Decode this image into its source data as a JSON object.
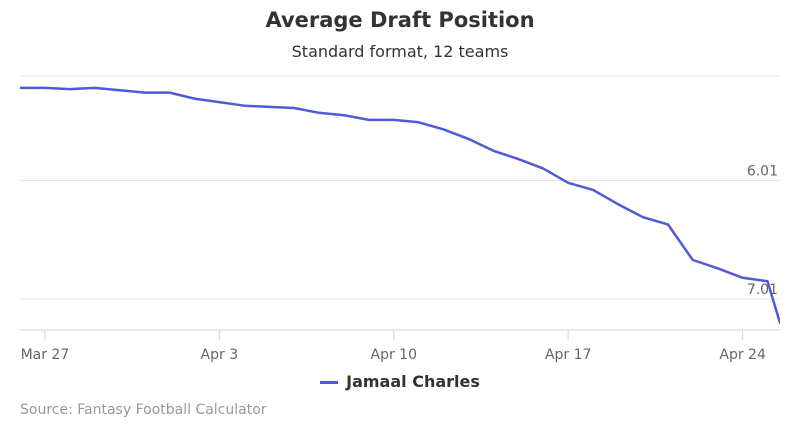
{
  "chart_data": {
    "type": "line",
    "title": "Average Draft Position",
    "subtitle": "Standard format, 12 teams",
    "xlabel": "",
    "ylabel": "",
    "x_tick_labels": [
      "Mar 27",
      "Apr 3",
      "Apr 10",
      "Apr 17",
      "Apr 24"
    ],
    "y_tick_labels": [
      "6.01",
      "7.01"
    ],
    "y_axis_reversed": true,
    "ylim": [
      5.13,
      7.27
    ],
    "xlim": [
      "2016-03-26",
      "2016-04-25"
    ],
    "grid": true,
    "legend_position": "bottom-center",
    "series": [
      {
        "name": "Jamaal Charles",
        "color": "#4f5bd5",
        "x": [
          "2016-03-26",
          "2016-03-27",
          "2016-03-28",
          "2016-03-29",
          "2016-03-30",
          "2016-03-31",
          "2016-04-01",
          "2016-04-02",
          "2016-04-03",
          "2016-04-04",
          "2016-04-05",
          "2016-04-06",
          "2016-04-07",
          "2016-04-08",
          "2016-04-09",
          "2016-04-10",
          "2016-04-11",
          "2016-04-12",
          "2016-04-13",
          "2016-04-14",
          "2016-04-15",
          "2016-04-16",
          "2016-04-17",
          "2016-04-18",
          "2016-04-19",
          "2016-04-20",
          "2016-04-21",
          "2016-04-22",
          "2016-04-23",
          "2016-04-24",
          "2016-04-25",
          "2016-04-25T12:00"
        ],
        "values": [
          5.23,
          5.23,
          5.24,
          5.23,
          5.25,
          5.27,
          5.27,
          5.32,
          5.35,
          5.38,
          5.39,
          5.4,
          5.44,
          5.46,
          5.5,
          5.5,
          5.52,
          5.58,
          5.66,
          5.76,
          5.83,
          5.91,
          6.03,
          6.09,
          6.21,
          6.32,
          6.38,
          6.68,
          6.75,
          6.83,
          6.86,
          7.21
        ]
      }
    ]
  },
  "legend": {
    "label": "Jamaal Charles"
  },
  "credits": "Source: Fantasy Football Calculator"
}
